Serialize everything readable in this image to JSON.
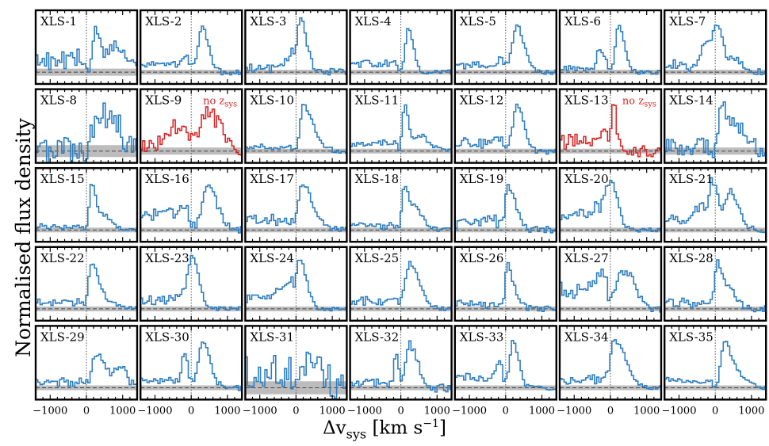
{
  "figure": {
    "ylabel": "Normalised flux density",
    "xlabel": {
      "prefix": "Δv",
      "sub": "sys",
      "unit": " [km s",
      "exp": "−1",
      "close": "]"
    },
    "no_zsys_label": "no z",
    "no_zsys_sub": "sys"
  },
  "chart_data": {
    "type": "line",
    "drawstyle": "steps-mid",
    "xlim": [
      -1400,
      1400
    ],
    "xticks": [
      -1000,
      0,
      1000
    ],
    "xtick_labels": [
      "−1000",
      "0",
      "1000"
    ],
    "colors": {
      "normal": "#2f7fc1",
      "no_zsys": "#d62728",
      "noise": "#b0b0b0",
      "zero": "#444444"
    },
    "grid": false,
    "panels": [
      {
        "name": "XLS-1",
        "noise": 0.12,
        "no_zsys": false,
        "seed": 11,
        "pre": [
          0.15,
          0.35
        ],
        "comps": [
          [
            250,
            150,
            0.9
          ],
          [
            800,
            300,
            0.6
          ]
        ]
      },
      {
        "name": "XLS-2",
        "noise": 0.04,
        "no_zsys": false,
        "seed": 12,
        "pre": [
          0.15,
          0.25
        ],
        "comps": [
          [
            300,
            170,
            0.95
          ],
          [
            -100,
            200,
            0.2
          ]
        ]
      },
      {
        "name": "XLS-3",
        "noise": 0.05,
        "no_zsys": false,
        "seed": 13,
        "pre": [
          0.05,
          0.15
        ],
        "comps": [
          [
            130,
            160,
            1.0
          ],
          [
            -150,
            250,
            0.3
          ]
        ]
      },
      {
        "name": "XLS-4",
        "noise": 0.03,
        "no_zsys": false,
        "seed": 14,
        "pre": [
          0.1,
          0.25
        ],
        "comps": [
          [
            200,
            130,
            1.0
          ]
        ]
      },
      {
        "name": "XLS-5",
        "noise": 0.03,
        "no_zsys": false,
        "seed": 15,
        "pre": [
          0.1,
          0.2
        ],
        "comps": [
          [
            300,
            200,
            1.0
          ],
          [
            -100,
            180,
            0.2
          ]
        ]
      },
      {
        "name": "XLS-6",
        "noise": 0.03,
        "no_zsys": false,
        "seed": 16,
        "pre": [
          0.05,
          0.1
        ],
        "comps": [
          [
            220,
            150,
            1.0
          ],
          [
            -300,
            120,
            0.45
          ]
        ]
      },
      {
        "name": "XLS-7",
        "noise": 0.06,
        "no_zsys": false,
        "seed": 17,
        "pre": [
          0.1,
          0.2
        ],
        "comps": [
          [
            50,
            170,
            0.9
          ],
          [
            -250,
            200,
            0.5
          ],
          [
            500,
            200,
            0.3
          ]
        ]
      },
      {
        "name": "XLS-8",
        "noise": 0.2,
        "no_zsys": false,
        "seed": 18,
        "pre": [
          0.0,
          0.0
        ],
        "comps": [
          [
            500,
            400,
            0.8
          ],
          [
            200,
            150,
            0.3
          ]
        ]
      },
      {
        "name": "XLS-9",
        "noise": 0.12,
        "no_zsys": true,
        "seed": 19,
        "pre": [
          0.05,
          0.1
        ],
        "comps": [
          [
            450,
            350,
            0.8
          ],
          [
            -500,
            400,
            0.4
          ]
        ]
      },
      {
        "name": "XLS-10",
        "noise": 0.04,
        "no_zsys": false,
        "seed": 20,
        "pre": [
          0.05,
          0.1
        ],
        "comps": [
          [
            200,
            140,
            1.0
          ],
          [
            450,
            200,
            0.4
          ]
        ]
      },
      {
        "name": "XLS-11",
        "noise": 0.03,
        "no_zsys": false,
        "seed": 21,
        "pre": [
          0.1,
          0.25
        ],
        "comps": [
          [
            100,
            110,
            1.0
          ],
          [
            500,
            250,
            0.35
          ]
        ]
      },
      {
        "name": "XLS-12",
        "noise": 0.04,
        "no_zsys": false,
        "seed": 22,
        "pre": [
          0.1,
          0.25
        ],
        "comps": [
          [
            300,
            180,
            1.0
          ],
          [
            -200,
            250,
            0.15
          ]
        ]
      },
      {
        "name": "XLS-13",
        "noise": 0.08,
        "no_zsys": true,
        "seed": 23,
        "pre": [
          0.15,
          0.35
        ],
        "comps": [
          [
            80,
            80,
            1.0
          ],
          [
            -200,
            200,
            0.2
          ]
        ]
      },
      {
        "name": "XLS-14",
        "noise": 0.12,
        "no_zsys": false,
        "seed": 24,
        "pre": [
          0.05,
          0.1
        ],
        "comps": [
          [
            200,
            170,
            1.0
          ],
          [
            600,
            250,
            0.5
          ]
        ]
      },
      {
        "name": "XLS-15",
        "noise": 0.03,
        "no_zsys": false,
        "seed": 25,
        "pre": [
          0.05,
          0.1
        ],
        "comps": [
          [
            150,
            120,
            1.0
          ],
          [
            500,
            200,
            0.3
          ]
        ]
      },
      {
        "name": "XLS-16",
        "noise": 0.05,
        "no_zsys": false,
        "seed": 26,
        "pre": [
          0.25,
          0.45
        ],
        "comps": [
          [
            450,
            250,
            0.95
          ],
          [
            -200,
            200,
            0.2
          ]
        ]
      },
      {
        "name": "XLS-17",
        "noise": 0.04,
        "no_zsys": false,
        "seed": 27,
        "pre": [
          0.1,
          0.3
        ],
        "comps": [
          [
            150,
            170,
            1.0
          ],
          [
            450,
            250,
            0.35
          ]
        ]
      },
      {
        "name": "XLS-18",
        "noise": 0.03,
        "no_zsys": false,
        "seed": 28,
        "pre": [
          0.05,
          0.15
        ],
        "comps": [
          [
            100,
            120,
            1.0
          ],
          [
            400,
            200,
            0.45
          ]
        ]
      },
      {
        "name": "XLS-19",
        "noise": 0.05,
        "no_zsys": false,
        "seed": 29,
        "pre": [
          0.1,
          0.25
        ],
        "comps": [
          [
            50,
            110,
            1.0
          ],
          [
            250,
            150,
            0.4
          ]
        ]
      },
      {
        "name": "XLS-20",
        "noise": 0.03,
        "no_zsys": false,
        "seed": 30,
        "pre": [
          0.2,
          0.45
        ],
        "comps": [
          [
            0,
            180,
            1.0
          ],
          [
            -300,
            300,
            0.2
          ]
        ]
      },
      {
        "name": "XLS-21",
        "noise": 0.04,
        "no_zsys": false,
        "seed": 31,
        "pre": [
          0.15,
          0.35
        ],
        "comps": [
          [
            -50,
            150,
            0.9
          ],
          [
            400,
            220,
            0.85
          ],
          [
            -400,
            250,
            0.3
          ]
        ]
      },
      {
        "name": "XLS-22",
        "noise": 0.03,
        "no_zsys": false,
        "seed": 32,
        "pre": [
          0.1,
          0.2
        ],
        "comps": [
          [
            150,
            160,
            1.0
          ],
          [
            500,
            300,
            0.2
          ]
        ]
      },
      {
        "name": "XLS-23",
        "noise": 0.03,
        "no_zsys": false,
        "seed": 33,
        "pre": [
          0.1,
          0.3
        ],
        "comps": [
          [
            30,
            170,
            1.0
          ],
          [
            -150,
            250,
            0.25
          ]
        ]
      },
      {
        "name": "XLS-24",
        "noise": 0.03,
        "no_zsys": false,
        "seed": 34,
        "pre": [
          0.15,
          0.35
        ],
        "comps": [
          [
            100,
            180,
            1.0
          ],
          [
            -300,
            300,
            0.25
          ]
        ]
      },
      {
        "name": "XLS-25",
        "noise": 0.03,
        "no_zsys": false,
        "seed": 35,
        "pre": [
          0.1,
          0.25
        ],
        "comps": [
          [
            250,
            250,
            1.0
          ]
        ]
      },
      {
        "name": "XLS-26",
        "noise": 0.04,
        "no_zsys": false,
        "seed": 36,
        "pre": [
          0.05,
          0.15
        ],
        "comps": [
          [
            50,
            100,
            1.0
          ],
          [
            250,
            150,
            0.3
          ]
        ]
      },
      {
        "name": "XLS-27",
        "noise": 0.06,
        "no_zsys": false,
        "seed": 37,
        "pre": [
          0.3,
          0.5
        ],
        "comps": [
          [
            300,
            250,
            0.75
          ],
          [
            -300,
            250,
            0.35
          ],
          [
            600,
            200,
            0.3
          ]
        ]
      },
      {
        "name": "XLS-28",
        "noise": 0.05,
        "no_zsys": false,
        "seed": 38,
        "pre": [
          0.05,
          0.2
        ],
        "comps": [
          [
            50,
            130,
            1.0
          ],
          [
            350,
            200,
            0.45
          ]
        ]
      },
      {
        "name": "XLS-29",
        "noise": 0.06,
        "no_zsys": false,
        "seed": 39,
        "pre": [
          0.05,
          0.15
        ],
        "comps": [
          [
            300,
            250,
            0.75
          ],
          [
            900,
            200,
            0.45
          ]
        ]
      },
      {
        "name": "XLS-30",
        "noise": 0.04,
        "no_zsys": false,
        "seed": 40,
        "pre": [
          0.1,
          0.2
        ],
        "comps": [
          [
            300,
            200,
            1.0
          ],
          [
            -200,
            120,
            0.55
          ]
        ]
      },
      {
        "name": "XLS-31",
        "noise": 0.22,
        "no_zsys": false,
        "seed": 41,
        "pre": [
          0.2,
          0.4
        ],
        "comps": [
          [
            300,
            350,
            0.6
          ]
        ]
      },
      {
        "name": "XLS-32",
        "noise": 0.06,
        "no_zsys": false,
        "seed": 42,
        "pre": [
          0.05,
          0.15
        ],
        "comps": [
          [
            250,
            200,
            0.95
          ],
          [
            -150,
            80,
            0.7
          ]
        ]
      },
      {
        "name": "XLS-33",
        "noise": 0.03,
        "no_zsys": false,
        "seed": 43,
        "pre": [
          0.15,
          0.3
        ],
        "comps": [
          [
            200,
            150,
            1.0
          ],
          [
            -200,
            120,
            0.35
          ]
        ]
      },
      {
        "name": "XLS-34",
        "noise": 0.03,
        "no_zsys": false,
        "seed": 44,
        "pre": [
          0.1,
          0.25
        ],
        "comps": [
          [
            100,
            200,
            1.0
          ],
          [
            400,
            250,
            0.3
          ]
        ]
      },
      {
        "name": "XLS-35",
        "noise": 0.03,
        "no_zsys": false,
        "seed": 45,
        "pre": [
          0.1,
          0.2
        ],
        "comps": [
          [
            250,
            170,
            1.0
          ],
          [
            600,
            250,
            0.3
          ]
        ]
      }
    ]
  }
}
